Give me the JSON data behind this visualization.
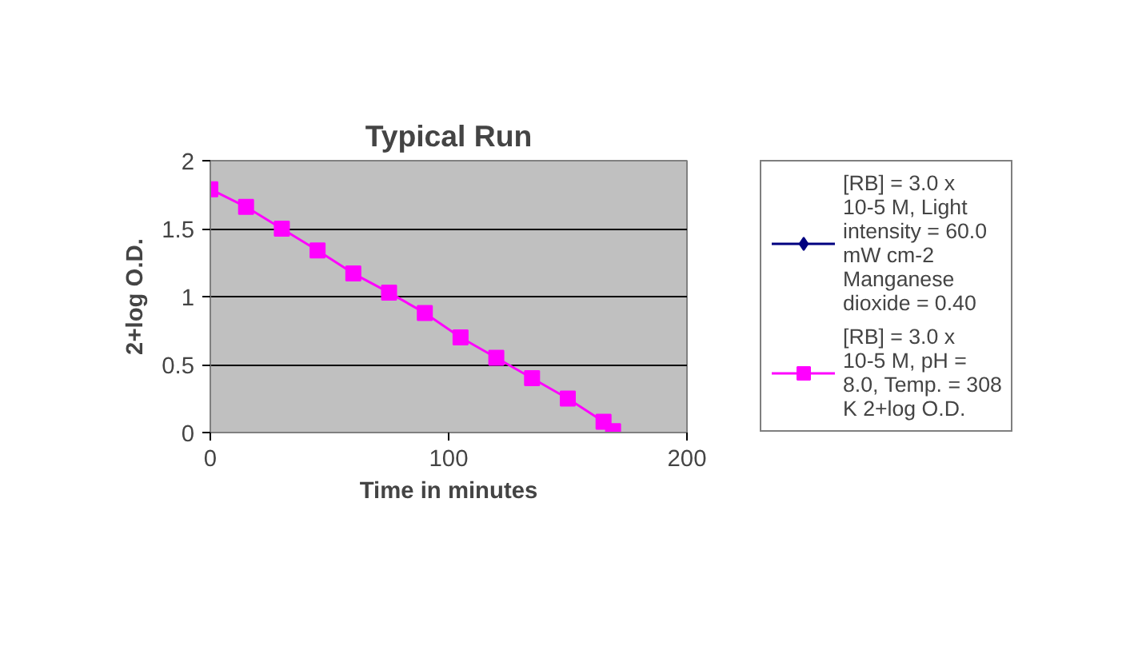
{
  "chart_data": {
    "type": "line",
    "title": "Typical Run",
    "xlabel": "Time in minutes",
    "ylabel": "2+log O.D.",
    "x": [
      0,
      15,
      30,
      45,
      60,
      75,
      90,
      105,
      120,
      135,
      150,
      165,
      169
    ],
    "series": [
      {
        "name": "[RB] = 3.0 x 10-5 M, Light intensity = 60.0 mW cm-2 Manganese dioxide = 0.40",
        "color": "#000080",
        "marker": "diamond",
        "values": [
          null,
          null,
          null,
          null,
          null,
          null,
          null,
          null,
          null,
          null,
          null,
          null,
          null
        ]
      },
      {
        "name": "[RB] = 3.0 x 10-5 M, pH = 8.0, Temp. = 308 K 2+log O.D.",
        "color": "#ff00ff",
        "marker": "square",
        "values": [
          1.79,
          1.66,
          1.5,
          1.34,
          1.17,
          1.03,
          0.88,
          0.7,
          0.55,
          0.4,
          0.25,
          0.08,
          0.01
        ]
      }
    ],
    "xlim": [
      0,
      200
    ],
    "ylim": [
      0,
      2
    ],
    "xticks": [
      0,
      100,
      200
    ],
    "yticks": [
      0,
      0.5,
      1,
      1.5,
      2
    ],
    "grid": "y",
    "legend": "right",
    "line_style": "solid"
  }
}
